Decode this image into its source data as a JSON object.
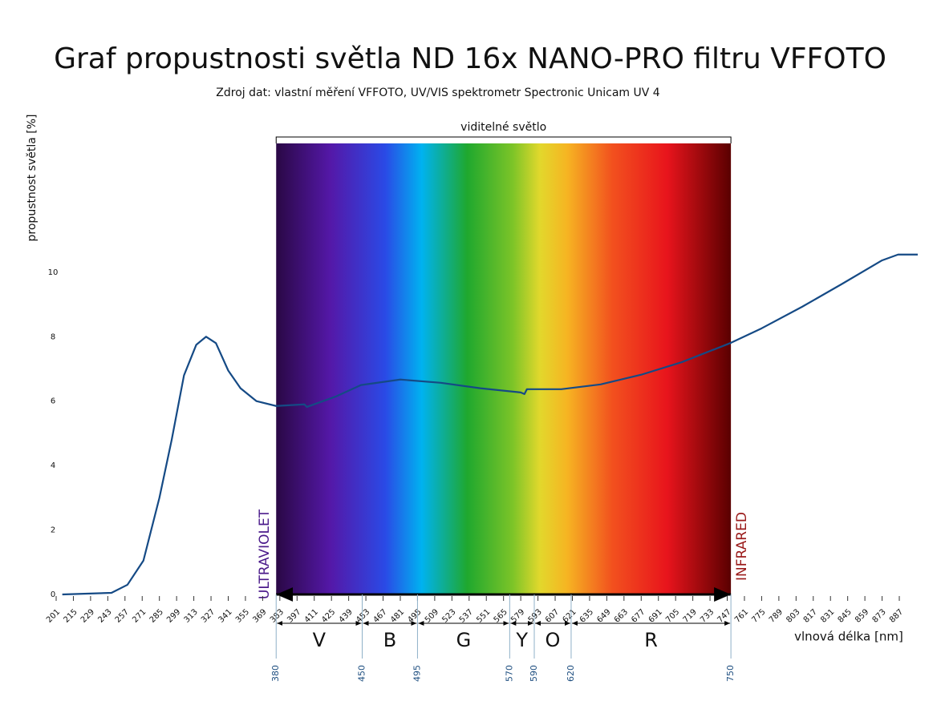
{
  "chart_data": {
    "type": "line",
    "title": "Graf propustnosti světla ND 16x NANO-PRO filtru VFFOTO",
    "subtitle": "Zdroj dat: vlastní měření VFFOTO, UV/VIS spektrometr Spectronic Unicam UV 4",
    "y_label": "propustnost světla [%]",
    "x_label": "vlnová délka [nm]",
    "color": "#154a85",
    "x": [
      206,
      246,
      259,
      272,
      285,
      295,
      305,
      315,
      323,
      331,
      341,
      351,
      364,
      380,
      403,
      405,
      429,
      449,
      481,
      514,
      546,
      579,
      582,
      584,
      612,
      644,
      677,
      710,
      750,
      775,
      808,
      840,
      873,
      886,
      902
    ],
    "values": [
      0,
      0.05,
      0.3,
      1.05,
      3.0,
      4.8,
      6.8,
      7.75,
      8.0,
      7.8,
      6.95,
      6.4,
      6.0,
      5.85,
      5.9,
      5.82,
      6.15,
      6.5,
      6.67,
      6.57,
      6.4,
      6.27,
      6.22,
      6.37,
      6.37,
      6.52,
      6.82,
      7.21,
      7.81,
      8.26,
      8.93,
      9.63,
      10.37,
      10.55,
      10.55
    ],
    "xlim": [
      201,
      902
    ],
    "ylim": [
      0,
      14
    ],
    "yticks": [
      0,
      2,
      4,
      6,
      8,
      10
    ],
    "xticks": [
      201,
      215,
      229,
      243,
      257,
      271,
      285,
      299,
      313,
      327,
      341,
      355,
      369,
      383,
      397,
      411,
      425,
      439,
      453,
      467,
      481,
      495,
      509,
      523,
      537,
      551,
      565,
      579,
      593,
      607,
      621,
      635,
      649,
      663,
      677,
      691,
      705,
      719,
      733,
      747,
      761,
      775,
      789,
      803,
      817,
      831,
      845,
      859,
      873,
      887
    ],
    "visible_label": "viditelné světlo",
    "uv_label": "ULTRAVIOLET",
    "ir_label": "INFRARED",
    "band_boundaries": [
      380,
      450,
      495,
      570,
      590,
      620,
      750
    ],
    "band_labels": [
      "V",
      "B",
      "G",
      "Y",
      "O",
      "R"
    ]
  }
}
